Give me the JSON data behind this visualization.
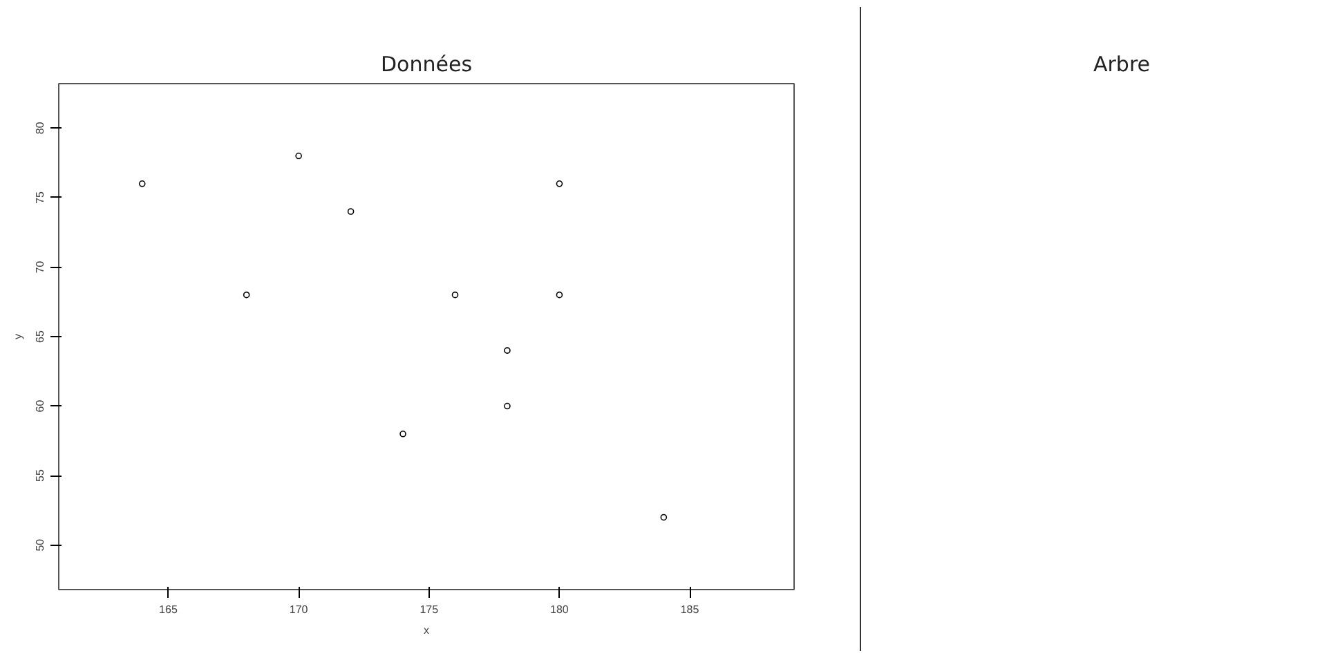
{
  "chart_data": [
    {
      "type": "scatter",
      "title": "Données",
      "xlabel": "x",
      "ylabel": "y",
      "marker": "circle",
      "grid": false,
      "x": [
        164,
        168,
        170,
        172,
        174,
        176,
        178,
        178,
        180,
        180,
        184
      ],
      "values": [
        76,
        68,
        78,
        74,
        58,
        68,
        64,
        60,
        76,
        68,
        52
      ],
      "color": "#000000",
      "xlim": [
        160.8,
        189
      ],
      "ylim": [
        46.8,
        83.2
      ],
      "xticks": [
        165,
        170,
        175,
        180,
        185
      ],
      "yticks": [
        50,
        55,
        60,
        65,
        70,
        75,
        80
      ]
    },
    {
      "type": "other",
      "title": "Arbre"
    }
  ]
}
